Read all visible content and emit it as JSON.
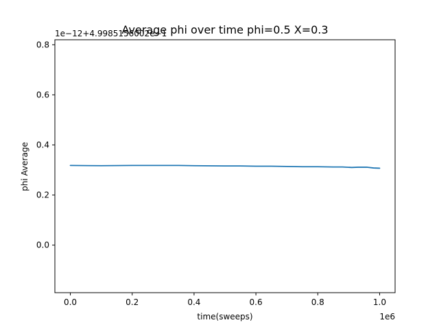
{
  "chart_data": {
    "type": "line",
    "title": "Average phi over time phi=0.5 X=0.3",
    "xlabel": "time(sweeps)",
    "ylabel": "phi Average",
    "x_offset_text": "1e6",
    "y_offset_text": "1e−12+4.9985156002e−1",
    "xlim": [
      -0.05,
      1.05
    ],
    "ylim": [
      -0.19,
      0.82
    ],
    "x_ticks": [
      {
        "value": 0.0,
        "label": "0.0"
      },
      {
        "value": 0.2,
        "label": "0.2"
      },
      {
        "value": 0.4,
        "label": "0.4"
      },
      {
        "value": 0.6,
        "label": "0.6"
      },
      {
        "value": 0.8,
        "label": "0.8"
      },
      {
        "value": 1.0,
        "label": "1.0"
      }
    ],
    "y_ticks": [
      {
        "value": 0.0,
        "label": "0.0"
      },
      {
        "value": 0.2,
        "label": "0.2"
      },
      {
        "value": 0.4,
        "label": "0.4"
      },
      {
        "value": 0.6,
        "label": "0.6"
      },
      {
        "value": 0.8,
        "label": "0.8"
      }
    ],
    "grid": false,
    "series": [
      {
        "color": "#1f77b4",
        "x": [
          0.0,
          0.1,
          0.2,
          0.3,
          0.35,
          0.4,
          0.5,
          0.55,
          0.6,
          0.65,
          0.7,
          0.75,
          0.8,
          0.85,
          0.88,
          0.91,
          0.93,
          0.96,
          0.98,
          1.0
        ],
        "y": [
          0.318,
          0.317,
          0.318,
          0.318,
          0.318,
          0.317,
          0.316,
          0.316,
          0.315,
          0.315,
          0.314,
          0.313,
          0.313,
          0.312,
          0.312,
          0.31,
          0.311,
          0.311,
          0.308,
          0.307
        ]
      }
    ]
  }
}
